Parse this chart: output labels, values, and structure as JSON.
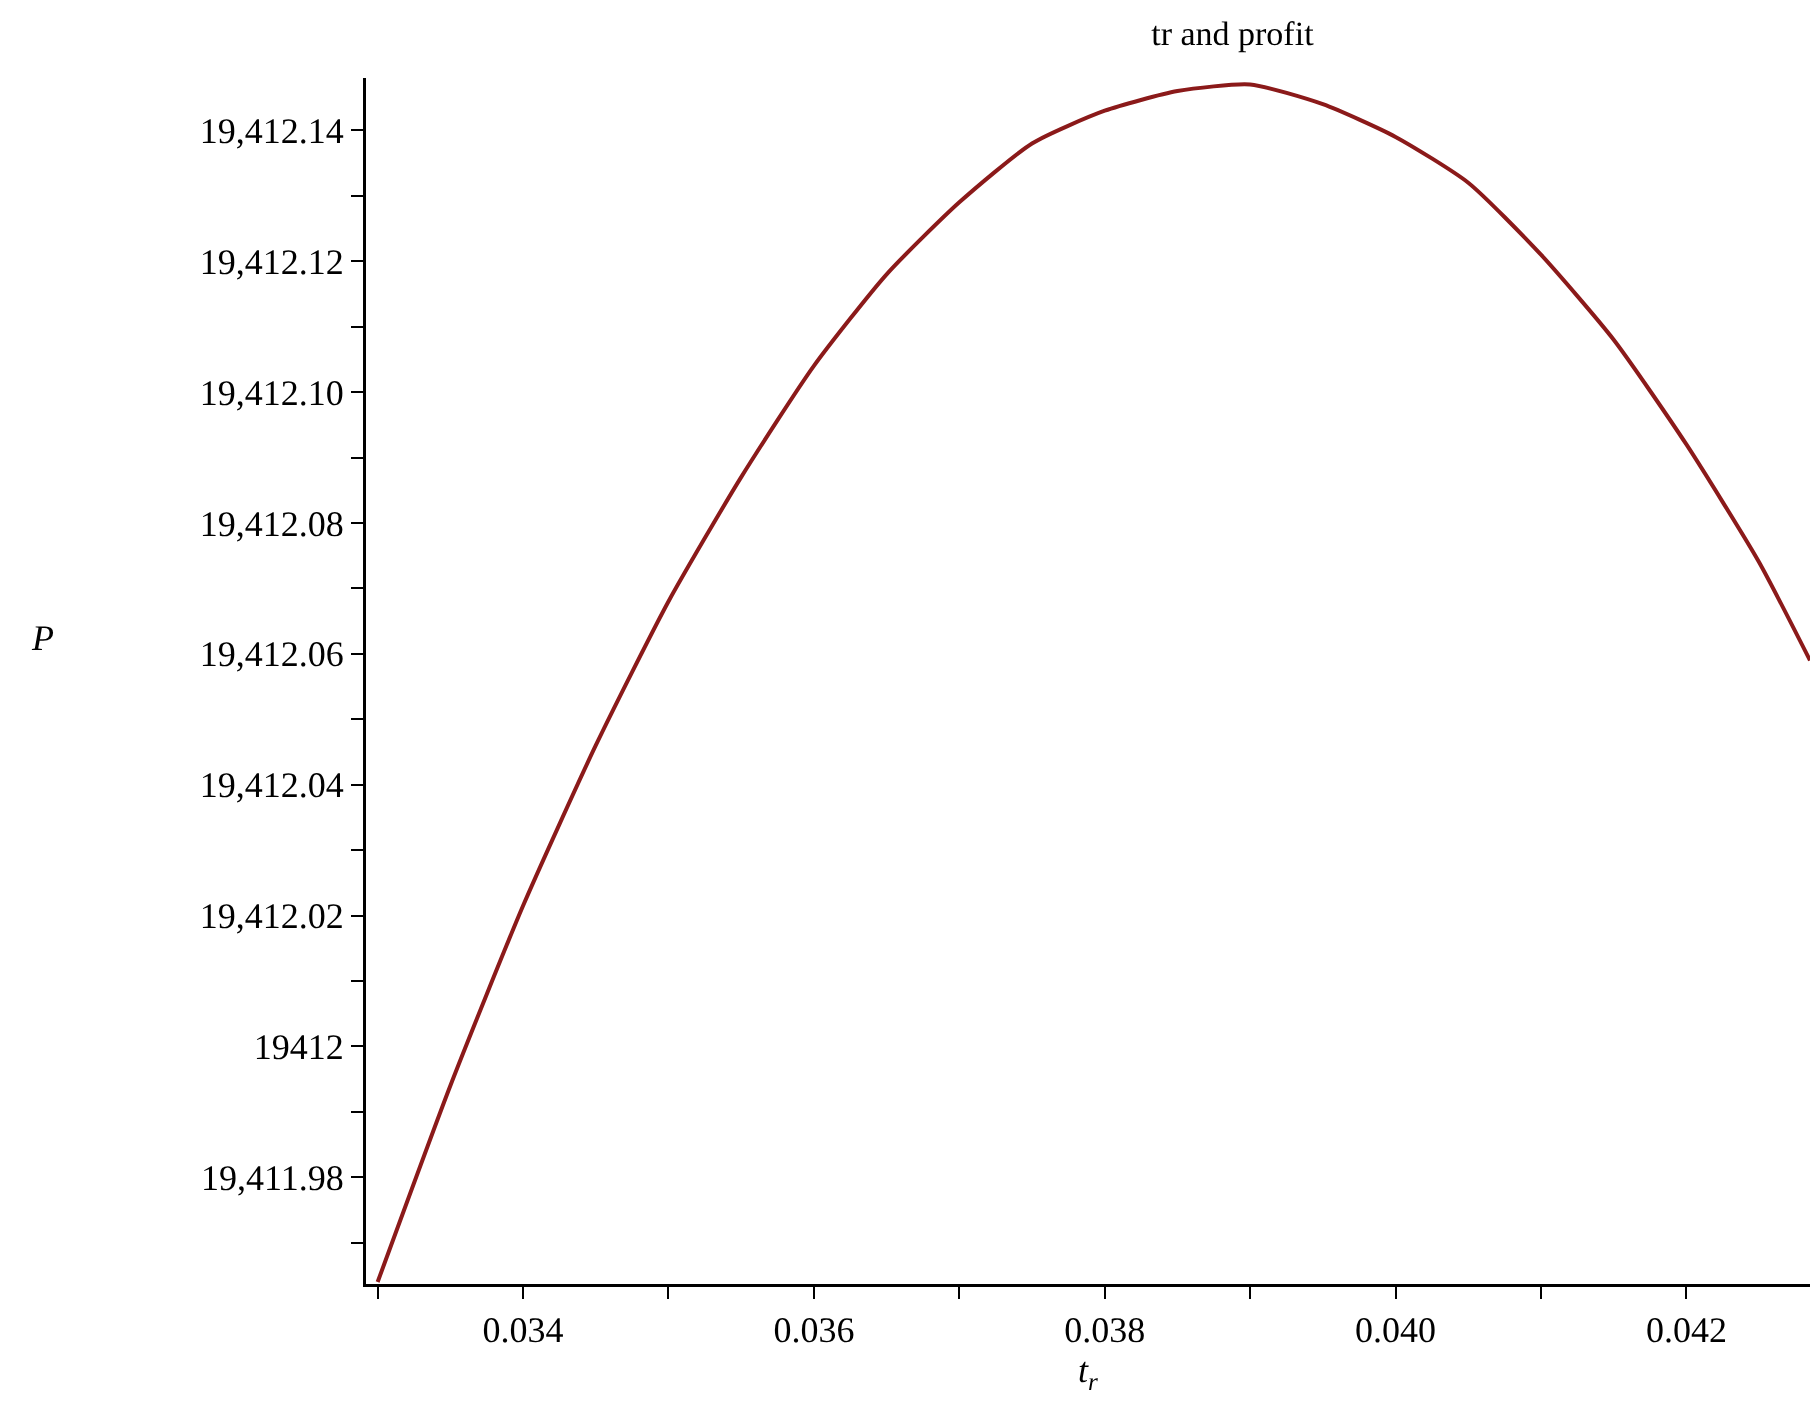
{
  "chart_data": {
    "type": "line",
    "title": "tr and profit",
    "xlabel": "t$_{r}$",
    "ylabel": "P",
    "x": [
      0.033,
      0.0335,
      0.034,
      0.0345,
      0.035,
      0.0355,
      0.036,
      0.0365,
      0.037,
      0.0375,
      0.038,
      0.0385,
      0.039,
      0.0395,
      0.04,
      0.0405,
      0.041,
      0.0415,
      0.042,
      0.0425,
      0.04285
    ],
    "series": [
      {
        "color": "#8b1a1a",
        "values": [
          19411.964,
          19411.994,
          19412.0215,
          19412.046,
          19412.068,
          19412.087,
          19412.104,
          19412.118,
          19412.129,
          19412.138,
          19412.143,
          19412.146,
          19412.147,
          19412.144,
          19412.139,
          19412.132,
          19412.121,
          19412.108,
          19412.092,
          19412.074,
          19412.059
        ]
      }
    ],
    "xlim": [
      0.03292,
      0.04285
    ],
    "ylim": [
      19411.9637,
      19412.148
    ],
    "xticks": [
      {
        "value": 0.033,
        "label": null
      },
      {
        "value": 0.034,
        "label": "0.034"
      },
      {
        "value": 0.035,
        "label": null
      },
      {
        "value": 0.036,
        "label": "0.036"
      },
      {
        "value": 0.037,
        "label": null
      },
      {
        "value": 0.038,
        "label": "0.038"
      },
      {
        "value": 0.039,
        "label": null
      },
      {
        "value": 0.04,
        "label": "0.040"
      },
      {
        "value": 0.041,
        "label": null
      },
      {
        "value": 0.042,
        "label": "0.042"
      }
    ],
    "yticks": [
      {
        "value": 19411.97,
        "label": null
      },
      {
        "value": 19411.98,
        "label": "19,411.98"
      },
      {
        "value": 19411.99,
        "label": null
      },
      {
        "value": 19412,
        "label": "19412"
      },
      {
        "value": 19412.01,
        "label": null
      },
      {
        "value": 19412.02,
        "label": "19,412.02"
      },
      {
        "value": 19412.03,
        "label": null
      },
      {
        "value": 19412.04,
        "label": "19,412.04"
      },
      {
        "value": 19412.05,
        "label": null
      },
      {
        "value": 19412.06,
        "label": "19,412.06"
      },
      {
        "value": 19412.07,
        "label": null
      },
      {
        "value": 19412.08,
        "label": "19,412.08"
      },
      {
        "value": 19412.09,
        "label": null
      },
      {
        "value": 19412.1,
        "label": "19,412.10"
      },
      {
        "value": 19412.11,
        "label": null
      },
      {
        "value": 19412.12,
        "label": "19,412.12"
      },
      {
        "value": 19412.13,
        "label": null
      },
      {
        "value": 19412.14,
        "label": "19,412.14"
      }
    ],
    "grid": false,
    "marker": "none",
    "line_style": "solid"
  }
}
